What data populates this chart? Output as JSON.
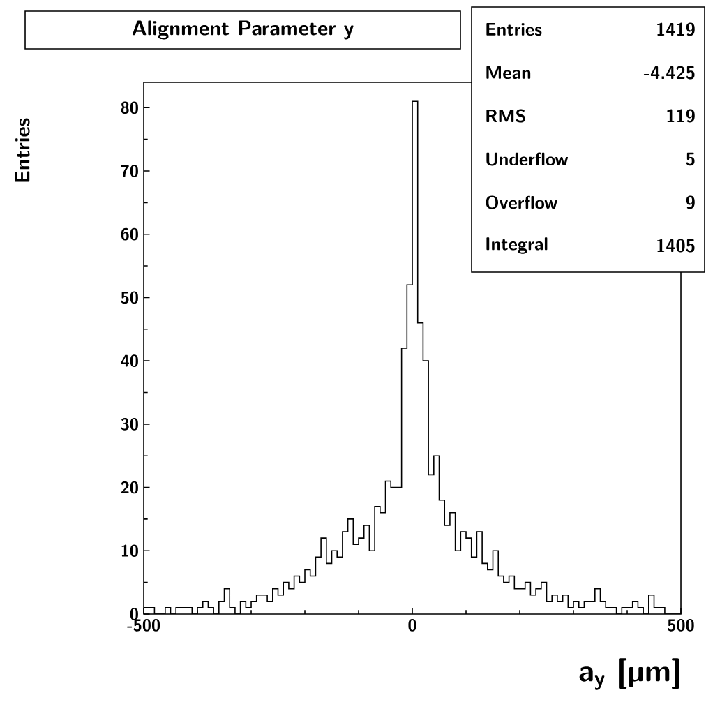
{
  "chart_data": {
    "type": "histogram",
    "title": "Alignment Parameter y",
    "xlabel": "a$_{y}$ [µm]",
    "ylabel": "Entries",
    "bins": [
      -500,
      -490,
      -480,
      -470,
      -460,
      -450,
      -440,
      -430,
      -420,
      -410,
      -400,
      -390,
      -380,
      -370,
      -360,
      -350,
      -340,
      -330,
      -320,
      -310,
      -300,
      -290,
      -280,
      -270,
      -260,
      -250,
      -240,
      -230,
      -220,
      -210,
      -200,
      -190,
      -180,
      -170,
      -160,
      -150,
      -140,
      -130,
      -120,
      -110,
      -100,
      -90,
      -80,
      -70,
      -60,
      -50,
      -40,
      -30,
      -20,
      -10,
      0,
      10,
      20,
      30,
      40,
      50,
      60,
      70,
      80,
      90,
      100,
      110,
      120,
      130,
      140,
      150,
      160,
      170,
      180,
      190,
      200,
      210,
      220,
      230,
      240,
      250,
      260,
      270,
      280,
      290,
      300,
      310,
      320,
      330,
      340,
      350,
      360,
      370,
      380,
      390,
      400,
      410,
      420,
      430,
      440,
      450,
      460,
      470,
      480,
      490,
      500
    ],
    "values": [
      1,
      1,
      0,
      0,
      1,
      0,
      1,
      1,
      1,
      0,
      1,
      2,
      1,
      0,
      2,
      4,
      1,
      0,
      2,
      1,
      2,
      3,
      3,
      2,
      4,
      3,
      5,
      4,
      6,
      5,
      7,
      6,
      9,
      12,
      8,
      10,
      9,
      13,
      15,
      11,
      12,
      14,
      10,
      17,
      16,
      21,
      20,
      20,
      42,
      52,
      81,
      46,
      40,
      22,
      25,
      18,
      14,
      16,
      10,
      13,
      12,
      9,
      13,
      8,
      7,
      10,
      6,
      5,
      6,
      4,
      4,
      5,
      3,
      4,
      5,
      2,
      3,
      2,
      3,
      1,
      2,
      1,
      2,
      2,
      4,
      2,
      1,
      1,
      0,
      1,
      1,
      2,
      1,
      0,
      3,
      1,
      1,
      0,
      0,
      0
    ],
    "color": "#000000",
    "xlim": [
      -500,
      500
    ],
    "ylim": [
      0,
      84
    ],
    "xticks": [
      -500,
      0,
      500
    ],
    "yticks": [
      0,
      10,
      20,
      30,
      40,
      50,
      60,
      70,
      80
    ],
    "annotations": [
      "Entries",
      "1419",
      "Mean",
      "-4.425",
      "RMS",
      "119",
      "Underflow",
      "5",
      "Overflow",
      "9",
      "Integral",
      "1405"
    ]
  }
}
